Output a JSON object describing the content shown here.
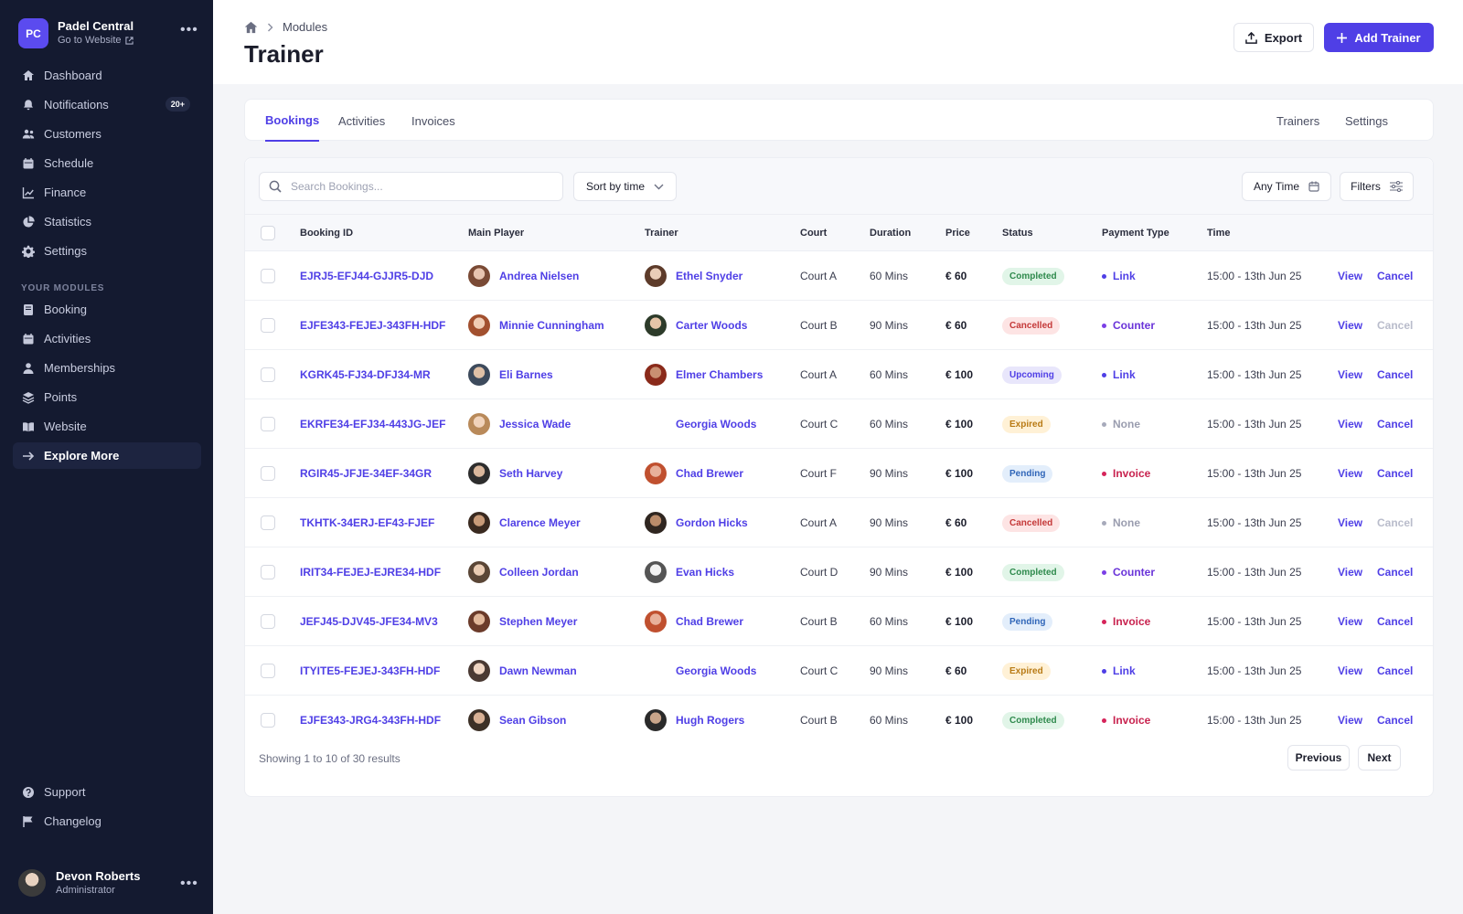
{
  "app": {
    "initials": "PC",
    "name": "Padel Central",
    "website_link": "Go to Website"
  },
  "sidebar": {
    "items": [
      {
        "label": "Dashboard",
        "icon": "home-icon"
      },
      {
        "label": "Notifications",
        "icon": "bell-icon",
        "badge": "20+"
      },
      {
        "label": "Customers",
        "icon": "users-icon"
      },
      {
        "label": "Schedule",
        "icon": "calendar-icon"
      },
      {
        "label": "Finance",
        "icon": "chart-icon"
      },
      {
        "label": "Statistics",
        "icon": "pie-icon"
      },
      {
        "label": "Settings",
        "icon": "gear-icon"
      }
    ],
    "section_title": "YOUR MODULES",
    "modules": [
      {
        "label": "Booking",
        "icon": "book-icon"
      },
      {
        "label": "Activities",
        "icon": "calendar-icon"
      },
      {
        "label": "Memberships",
        "icon": "user-icon"
      },
      {
        "label": "Points",
        "icon": "layers-icon"
      },
      {
        "label": "Website",
        "icon": "open-book-icon"
      },
      {
        "label": "Explore More",
        "icon": "arrow-right-icon"
      }
    ],
    "bottom": [
      {
        "label": "Support",
        "icon": "help-icon"
      },
      {
        "label": "Changelog",
        "icon": "flag-icon"
      }
    ],
    "user": {
      "name": "Devon Roberts",
      "role": "Administrator"
    }
  },
  "header": {
    "breadcrumb": "Modules",
    "title": "Trainer",
    "export_label": "Export",
    "add_label": "Add Trainer"
  },
  "tabs": {
    "left": [
      "Bookings",
      "Activities",
      "Invoices"
    ],
    "right": [
      "Trainers",
      "Settings"
    ],
    "active": "Bookings"
  },
  "toolbar": {
    "search_placeholder": "Search Bookings...",
    "sort_label": "Sort by time",
    "time_label": "Any Time",
    "filters_label": "Filters"
  },
  "table": {
    "columns": [
      "Booking ID",
      "Main Player",
      "Trainer",
      "Court",
      "Duration",
      "Price",
      "Status",
      "Payment Type",
      "Time"
    ],
    "rows": [
      {
        "id": "EJRJ5-EFJ44-GJJR5-DJD",
        "player": "Andrea Nielsen",
        "trainer": "Ethel Snyder",
        "trainer_avatar": true,
        "court": "Court A",
        "duration": "60 Mins",
        "price": "€ 60",
        "status": "Completed",
        "payment": "Link",
        "time": "15:00 - 13th Jun 25",
        "view": "View",
        "cancel": "Cancel",
        "cancel_enabled": true
      },
      {
        "id": "EJFE343-FEJEJ-343FH-HDF",
        "player": "Minnie Cunningham",
        "trainer": "Carter Woods",
        "trainer_avatar": true,
        "court": "Court B",
        "duration": "90 Mins",
        "price": "€ 60",
        "status": "Cancelled",
        "payment": "Counter",
        "time": "15:00 - 13th Jun 25",
        "view": "View",
        "cancel": "Cancel",
        "cancel_enabled": false
      },
      {
        "id": "KGRK45-FJ34-DFJ34-MR",
        "player": "Eli Barnes",
        "trainer": "Elmer Chambers",
        "trainer_avatar": true,
        "court": "Court A",
        "duration": "60 Mins",
        "price": "€ 100",
        "status": "Upcoming",
        "payment": "Link",
        "time": "15:00 - 13th Jun 25",
        "view": "View",
        "cancel": "Cancel",
        "cancel_enabled": true
      },
      {
        "id": "EKRFE34-EFJ34-443JG-JEF",
        "player": "Jessica Wade",
        "trainer": "Georgia Woods",
        "trainer_avatar": false,
        "court": "Court C",
        "duration": "60 Mins",
        "price": "€ 100",
        "status": "Expired",
        "payment": "None",
        "time": "15:00 - 13th Jun 25",
        "view": "View",
        "cancel": "Cancel",
        "cancel_enabled": true
      },
      {
        "id": "RGIR45-JFJE-34EF-34GR",
        "player": "Seth Harvey",
        "trainer": "Chad Brewer",
        "trainer_avatar": true,
        "court": "Court F",
        "duration": "90 Mins",
        "price": "€ 100",
        "status": "Pending",
        "payment": "Invoice",
        "time": "15:00 - 13th Jun 25",
        "view": "View",
        "cancel": "Cancel",
        "cancel_enabled": true
      },
      {
        "id": "TKHTK-34ERJ-EF43-FJEF",
        "player": "Clarence Meyer",
        "trainer": "Gordon Hicks",
        "trainer_avatar": true,
        "court": "Court A",
        "duration": "90 Mins",
        "price": "€ 60",
        "status": "Cancelled",
        "payment": "None",
        "time": "15:00 - 13th Jun 25",
        "view": "View",
        "cancel": "Cancel",
        "cancel_enabled": false
      },
      {
        "id": "IRIT34-FEJEJ-EJRE34-HDF",
        "player": "Colleen Jordan",
        "trainer": "Evan Hicks",
        "trainer_avatar": true,
        "court": "Court D",
        "duration": "90 Mins",
        "price": "€ 100",
        "status": "Completed",
        "payment": "Counter",
        "time": "15:00 - 13th Jun 25",
        "view": "View",
        "cancel": "Cancel",
        "cancel_enabled": true
      },
      {
        "id": "JEFJ45-DJV45-JFE34-MV3",
        "player": "Stephen Meyer",
        "trainer": "Chad Brewer",
        "trainer_avatar": true,
        "court": "Court B",
        "duration": "60 Mins",
        "price": "€ 100",
        "status": "Pending",
        "payment": "Invoice",
        "time": "15:00 - 13th Jun 25",
        "view": "View",
        "cancel": "Cancel",
        "cancel_enabled": true
      },
      {
        "id": "ITYITE5-FEJEJ-343FH-HDF",
        "player": "Dawn Newman",
        "trainer": "Georgia Woods",
        "trainer_avatar": false,
        "court": "Court C",
        "duration": "90 Mins",
        "price": "€ 60",
        "status": "Expired",
        "payment": "Link",
        "time": "15:00 - 13th Jun 25",
        "view": "View",
        "cancel": "Cancel",
        "cancel_enabled": true
      },
      {
        "id": "EJFE343-JRG4-343FH-HDF",
        "player": "Sean Gibson",
        "trainer": "Hugh Rogers",
        "trainer_avatar": true,
        "court": "Court B",
        "duration": "60 Mins",
        "price": "€ 100",
        "status": "Completed",
        "payment": "Invoice",
        "time": "15:00 - 13th Jun 25",
        "view": "View",
        "cancel": "Cancel",
        "cancel_enabled": true
      }
    ]
  },
  "pagination": {
    "summary": "Showing 1 to 10 of 30 results",
    "previous": "Previous",
    "next": "Next"
  },
  "colors": {
    "accent": "#4f3fe6",
    "sidebar_bg": "#141a30",
    "link_dot": "#4f3fe6",
    "counter_dot": "#7b3fe6",
    "invoice_dot": "#d6245a",
    "none_dot": "#a7aabb"
  }
}
